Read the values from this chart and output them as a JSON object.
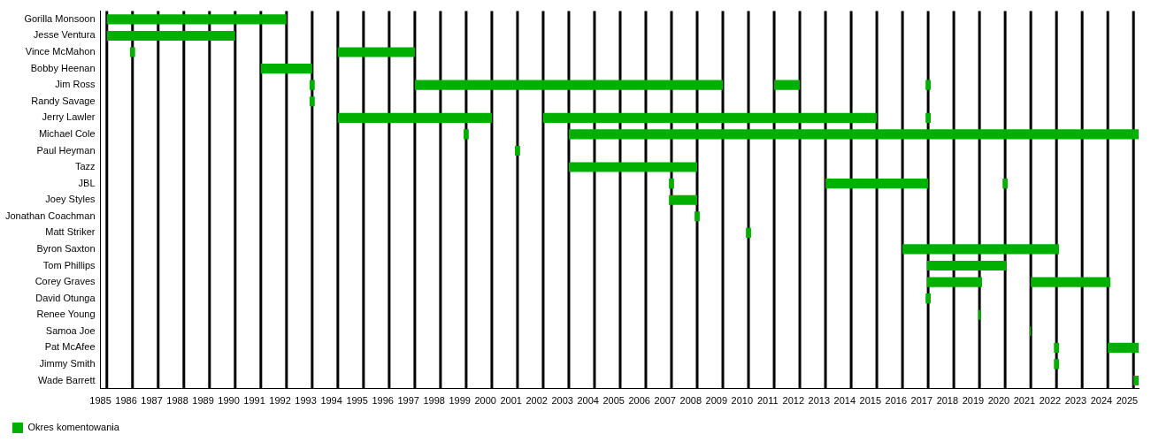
{
  "chart_data": {
    "type": "bar",
    "orientation": "horizontal",
    "legend": "bottom left",
    "grid": false,
    "categories": [
      "Gorilla Monsoon",
      "Jesse Ventura",
      "Vince McMahon",
      "Bobby Heenan",
      "Jim Ross",
      "Randy Savage",
      "Jerry Lawler",
      "Michael Cole",
      "Paul Heyman",
      "Tazz",
      "JBL",
      "Joey Styles",
      "Jonathan Coachman",
      "Matt Striker",
      "Byron Saxton",
      "Tom Phillips",
      "Corey Graves",
      "David Otunga",
      "Renee Young",
      "Samoa Joe",
      "Pat McAfee",
      "Jimmy Smith",
      "Wade Barrett"
    ],
    "xlim": [
      1985,
      2025.45
    ],
    "xticks": [
      1985,
      1986,
      1987,
      1988,
      1989,
      1990,
      1991,
      1992,
      1993,
      1994,
      1995,
      1996,
      1997,
      1998,
      1999,
      2000,
      2001,
      2002,
      2003,
      2004,
      2005,
      2006,
      2007,
      2008,
      2009,
      2010,
      2011,
      2012,
      2013,
      2014,
      2015,
      2016,
      2017,
      2018,
      2019,
      2020,
      2021,
      2022,
      2023,
      2024,
      2025
    ],
    "series": [
      {
        "name": "Okres komentowania",
        "color": "#00b000",
        "base": [
          1985.25,
          1985.25,
          1986.15,
          1991.25,
          1993.15,
          1993.15,
          1994.25,
          1999.15,
          2001.15,
          2003.25,
          2007.15,
          2007.15,
          2008.15,
          2010.15,
          2016.25,
          2017.2,
          2017.2,
          2017.15,
          2019.2,
          2021.2,
          2022.15,
          2022.15,
          2025.25
        ],
        "values": [
          7,
          5,
          0.2,
          2,
          0.2,
          0.2,
          6,
          0.2,
          0.2,
          5,
          0.2,
          1.1,
          0.2,
          0.2,
          6.1,
          3.1,
          2.15,
          0.2,
          0.1,
          0.05,
          0.2,
          0.2,
          0.2
        ]
      },
      {
        "color": "#00b000",
        "base": [
          null,
          null,
          1994.25,
          null,
          1997.25,
          null,
          2002.25,
          2003.25,
          null,
          null,
          2013.25,
          null,
          null,
          null,
          null,
          null,
          2021.25,
          null,
          null,
          null,
          2024.25,
          null,
          null
        ],
        "values": [
          null,
          null,
          3,
          null,
          12,
          null,
          13,
          22.2,
          null,
          null,
          4,
          null,
          null,
          null,
          null,
          null,
          3.1,
          null,
          null,
          null,
          1.2,
          null,
          null
        ]
      },
      {
        "color": "#00b000",
        "base": [
          null,
          null,
          null,
          null,
          2011.25,
          null,
          2017.15,
          null,
          null,
          null,
          2020.15,
          null,
          null,
          null,
          null,
          null,
          null,
          null,
          null,
          null,
          null,
          null,
          null
        ],
        "values": [
          null,
          null,
          null,
          null,
          1,
          null,
          0.2,
          null,
          null,
          null,
          0.2,
          null,
          null,
          null,
          null,
          null,
          null,
          null,
          null,
          null,
          null,
          null,
          null
        ]
      },
      {
        "color": "#00b000",
        "base": [
          null,
          null,
          null,
          null,
          2017.15,
          null,
          null,
          null,
          null,
          null,
          null,
          null,
          null,
          null,
          null,
          null,
          null,
          null,
          null,
          null,
          null,
          null,
          null
        ],
        "values": [
          null,
          null,
          null,
          null,
          0.2,
          null,
          null,
          null,
          null,
          null,
          null,
          null,
          null,
          null,
          null,
          null,
          null,
          null,
          null,
          null,
          null,
          null,
          null
        ]
      }
    ],
    "ref_lines": [
      {
        "axis": "x",
        "value": 1985.25,
        "color": "#000000"
      },
      {
        "axis": "x",
        "value": 1986.25,
        "color": "#000000"
      },
      {
        "axis": "x",
        "value": 1987.25,
        "color": "#000000"
      },
      {
        "axis": "x",
        "value": 1988.25,
        "color": "#000000"
      },
      {
        "axis": "x",
        "value": 1989.25,
        "color": "#000000"
      },
      {
        "axis": "x",
        "value": 1990.25,
        "color": "#000000"
      },
      {
        "axis": "x",
        "value": 1991.25,
        "color": "#000000"
      },
      {
        "axis": "x",
        "value": 1992.25,
        "color": "#000000"
      },
      {
        "axis": "x",
        "value": 1993.25,
        "color": "#000000"
      },
      {
        "axis": "x",
        "value": 1994.25,
        "color": "#000000"
      },
      {
        "axis": "x",
        "value": 1995.25,
        "color": "#000000"
      },
      {
        "axis": "x",
        "value": 1996.25,
        "color": "#000000"
      },
      {
        "axis": "x",
        "value": 1997.25,
        "color": "#000000"
      },
      {
        "axis": "x",
        "value": 1998.25,
        "color": "#000000"
      },
      {
        "axis": "x",
        "value": 1999.25,
        "color": "#000000"
      },
      {
        "axis": "x",
        "value": 2000.25,
        "color": "#000000"
      },
      {
        "axis": "x",
        "value": 2001.25,
        "color": "#000000"
      },
      {
        "axis": "x",
        "value": 2002.25,
        "color": "#000000"
      },
      {
        "axis": "x",
        "value": 2003.25,
        "color": "#000000"
      },
      {
        "axis": "x",
        "value": 2004.25,
        "color": "#000000"
      },
      {
        "axis": "x",
        "value": 2005.25,
        "color": "#000000"
      },
      {
        "axis": "x",
        "value": 2006.25,
        "color": "#000000"
      },
      {
        "axis": "x",
        "value": 2007.25,
        "color": "#000000"
      },
      {
        "axis": "x",
        "value": 2008.25,
        "color": "#000000"
      },
      {
        "axis": "x",
        "value": 2009.25,
        "color": "#000000"
      },
      {
        "axis": "x",
        "value": 2010.25,
        "color": "#000000"
      },
      {
        "axis": "x",
        "value": 2011.25,
        "color": "#000000"
      },
      {
        "axis": "x",
        "value": 2012.25,
        "color": "#000000"
      },
      {
        "axis": "x",
        "value": 2013.25,
        "color": "#000000"
      },
      {
        "axis": "x",
        "value": 2014.25,
        "color": "#000000"
      },
      {
        "axis": "x",
        "value": 2015.25,
        "color": "#000000"
      },
      {
        "axis": "x",
        "value": 2016.25,
        "color": "#000000"
      },
      {
        "axis": "x",
        "value": 2017.25,
        "color": "#000000"
      },
      {
        "axis": "x",
        "value": 2018.25,
        "color": "#000000"
      },
      {
        "axis": "x",
        "value": 2019.25,
        "color": "#000000"
      },
      {
        "axis": "x",
        "value": 2020.25,
        "color": "#000000"
      },
      {
        "axis": "x",
        "value": 2021.25,
        "color": "#000000"
      },
      {
        "axis": "x",
        "value": 2022.25,
        "color": "#000000"
      },
      {
        "axis": "x",
        "value": 2023.25,
        "color": "#000000"
      },
      {
        "axis": "x",
        "value": 2024.25,
        "color": "#000000"
      },
      {
        "axis": "x",
        "value": 2025.25,
        "color": "#000000"
      }
    ]
  }
}
